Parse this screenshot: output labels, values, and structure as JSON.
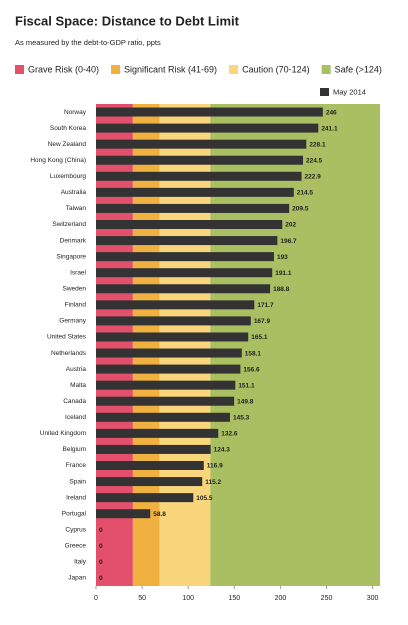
{
  "chart_data": {
    "type": "bar",
    "orientation": "horizontal",
    "title": "Fiscal Space: Distance to Debt Limit",
    "subtitle": "As measured by the debt-to-GDP ratio, ppts",
    "zones": [
      {
        "label": "Grave Risk (0-40)",
        "color": "#e2506b",
        "start": 0,
        "end": 40
      },
      {
        "label": "Significant Risk (41-69)",
        "color": "#f0b140",
        "start": 40,
        "end": 69
      },
      {
        "label": "Caution (70-124)",
        "color": "#f9d67c",
        "start": 69,
        "end": 124
      },
      {
        "label": "Safe (>124)",
        "color": "#a9bf62",
        "start": 124
      }
    ],
    "categories": [
      "Norway",
      "South Korea",
      "New Zealand",
      "Hong Kong (China)",
      "Luxembourg",
      "Australia",
      "Taiwan",
      "Switzerland",
      "Denmark",
      "Singapore",
      "Israel",
      "Sweden",
      "Finland",
      "Germany",
      "United States",
      "Netherlands",
      "Austria",
      "Malta",
      "Canada",
      "Iceland",
      "United Kingdom",
      "Belgium",
      "France",
      "Spain",
      "Ireland",
      "Portugal",
      "Cyprus",
      "Greece",
      "Italy",
      "Japan"
    ],
    "series": [
      {
        "name": "May 2014",
        "color": "#333333",
        "values": [
          246,
          241.1,
          228.1,
          224.5,
          222.9,
          214.5,
          209.5,
          202,
          196.7,
          193,
          191.1,
          188.8,
          171.7,
          167.9,
          165.1,
          158.1,
          156.6,
          151.1,
          149.8,
          145.3,
          132.6,
          124.3,
          116.9,
          115.2,
          105.5,
          58.8,
          0,
          0,
          0,
          0
        ]
      }
    ],
    "xlim": [
      0,
      308
    ],
    "xticks": [
      0,
      50,
      100,
      150,
      200,
      250,
      300
    ],
    "legend": "top-right"
  }
}
